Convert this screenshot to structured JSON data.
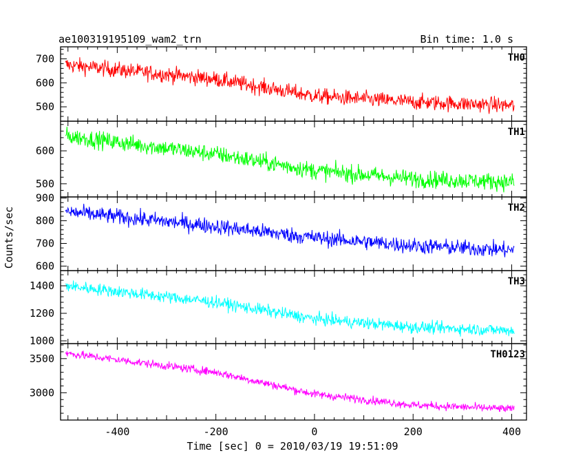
{
  "header": {
    "title": "ae100319195109_wam2_trn",
    "bin_time": "Bin time: 1.0 s"
  },
  "axes": {
    "xlabel": "Time [sec] 0 = 2010/03/19 19:51:09",
    "ylabel": "Counts/sec"
  },
  "chart_data": {
    "type": "line",
    "title": "ae100319195109_wam2_trn",
    "subtitle": "Bin time: 1.0 s",
    "xlabel": "Time [sec] 0 = 2010/03/19 19:51:09",
    "ylabel": "Counts/sec",
    "xlim": [
      -515,
      430
    ],
    "xticks": [
      -400,
      -200,
      0,
      200,
      400
    ],
    "x_data_range": [
      -505,
      405
    ],
    "panels": [
      {
        "name": "TH0",
        "color": "#ff0000",
        "ylim": [
          440,
          750
        ],
        "yticks": [
          500,
          600,
          700
        ],
        "trend": [
          {
            "x": -505,
            "y": 675
          },
          {
            "x": -200,
            "y": 615
          },
          {
            "x": 0,
            "y": 545
          },
          {
            "x": 200,
            "y": 520
          },
          {
            "x": 405,
            "y": 505
          }
        ],
        "noise_amplitude": 30
      },
      {
        "name": "TH1",
        "color": "#00ff00",
        "ylim": [
          460,
          690
        ],
        "yticks": [
          500,
          600
        ],
        "trend": [
          {
            "x": -505,
            "y": 645
          },
          {
            "x": -200,
            "y": 590
          },
          {
            "x": 0,
            "y": 540
          },
          {
            "x": 200,
            "y": 515
          },
          {
            "x": 405,
            "y": 505
          }
        ],
        "noise_amplitude": 24
      },
      {
        "name": "TH2",
        "color": "#0000ff",
        "ylim": [
          580,
          905
        ],
        "yticks": [
          600,
          700,
          800,
          900
        ],
        "trend": [
          {
            "x": -505,
            "y": 840
          },
          {
            "x": -200,
            "y": 775
          },
          {
            "x": 0,
            "y": 725
          },
          {
            "x": 200,
            "y": 690
          },
          {
            "x": 405,
            "y": 670
          }
        ],
        "noise_amplitude": 32
      },
      {
        "name": "TH3",
        "color": "#00ffff",
        "ylim": [
          980,
          1510
        ],
        "yticks": [
          1000,
          1200,
          1400
        ],
        "trend": [
          {
            "x": -505,
            "y": 1400
          },
          {
            "x": -200,
            "y": 1280
          },
          {
            "x": 0,
            "y": 1160
          },
          {
            "x": 200,
            "y": 1100
          },
          {
            "x": 405,
            "y": 1075
          }
        ],
        "noise_amplitude": 40
      },
      {
        "name": "TH0123",
        "color": "#ff00ff",
        "ylim": [
          2600,
          3720
        ],
        "yticks": [
          3000,
          3500
        ],
        "trend": [
          {
            "x": -505,
            "y": 3580
          },
          {
            "x": -200,
            "y": 3300
          },
          {
            "x": 0,
            "y": 2980
          },
          {
            "x": 200,
            "y": 2820
          },
          {
            "x": 405,
            "y": 2760
          }
        ],
        "noise_amplitude": 55
      }
    ]
  }
}
